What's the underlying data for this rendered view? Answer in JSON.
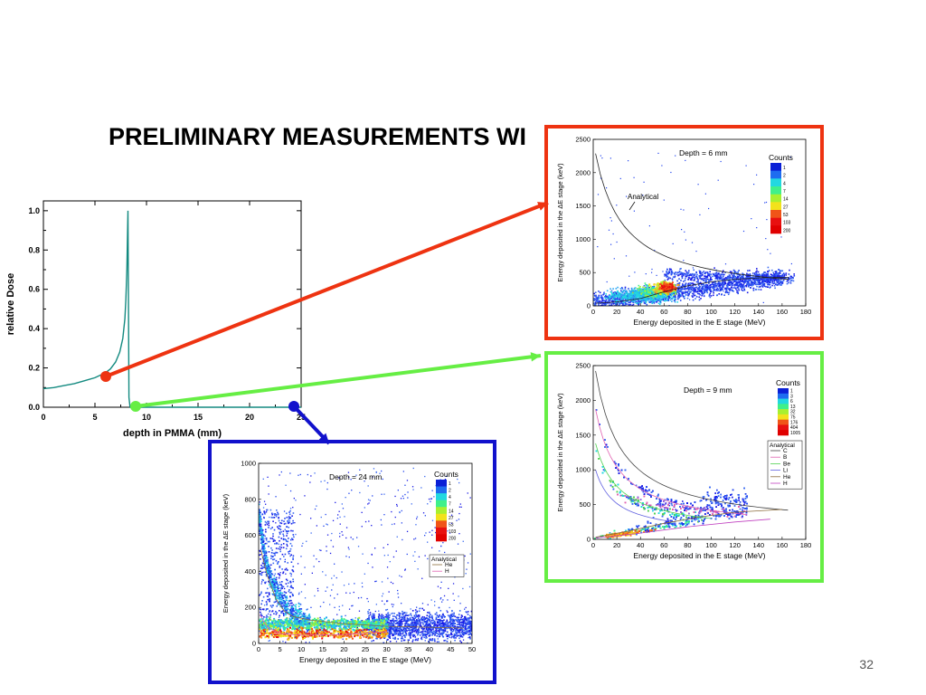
{
  "slide": {
    "title": "PRELIMINARY MEASUREMENTS WI",
    "page_number": "32"
  },
  "colors": {
    "arrow_6mm": "#ee3311",
    "arrow_9mm": "#66ee44",
    "arrow_24mm": "#1111cc",
    "bragg_curve": "#138a80"
  },
  "chart_data": [
    {
      "type": "line",
      "id": "bragg-curve",
      "xlabel": "depth in PMMA (mm)",
      "ylabel": "relative Dose",
      "xlim": [
        0,
        25
      ],
      "ylim": [
        0,
        1.05
      ],
      "xticks": [
        "0",
        "5",
        "10",
        "15",
        "20",
        "25"
      ],
      "yticks": [
        "0.0",
        "0.2",
        "0.4",
        "0.6",
        "0.8",
        "1.0"
      ],
      "series": [
        {
          "x": [
            0,
            1,
            2,
            3,
            4,
            5,
            6,
            6.5,
            7,
            7.4,
            7.7,
            7.9,
            8.0,
            8.1,
            8.15,
            8.2,
            8.25,
            8.3,
            8.4,
            25
          ],
          "y": [
            0.095,
            0.1,
            0.11,
            0.12,
            0.135,
            0.15,
            0.175,
            0.195,
            0.23,
            0.28,
            0.35,
            0.45,
            0.55,
            0.7,
            0.85,
            1.0,
            0.5,
            0.05,
            0.0,
            0.0
          ]
        }
      ],
      "markers": [
        {
          "x": 6,
          "y": 0.17
        },
        {
          "x": 8.5,
          "y": 0.01
        },
        {
          "x": 24,
          "y": 0.01
        }
      ]
    },
    {
      "type": "heatmap",
      "id": "depth-6mm",
      "annotation": "Depth = 6 mm",
      "analytical_label": "Analytical",
      "xlabel": "Energy deposited in the E stage (MeV)",
      "ylabel": "Energy deposited in the ΔE stage (keV)",
      "xlim": [
        0,
        180
      ],
      "ylim": [
        0,
        2500
      ],
      "xticks": [
        "0",
        "20",
        "40",
        "60",
        "80",
        "100",
        "120",
        "140",
        "160",
        "180"
      ],
      "yticks": [
        "0",
        "500",
        "1000",
        "1500",
        "2000",
        "2500"
      ],
      "legend_title": "Counts",
      "legend_levels": [
        "1",
        "2",
        "4",
        "7",
        "14",
        "27",
        "53",
        "103",
        "200"
      ]
    },
    {
      "type": "heatmap",
      "id": "depth-9mm",
      "annotation": "Depth = 9 mm",
      "xlabel": "Energy deposited in the E stage (MeV)",
      "ylabel": "Energy deposited in the ΔE stage (keV)",
      "xlim": [
        0,
        180
      ],
      "ylim": [
        0,
        2500
      ],
      "xticks": [
        "0",
        "20",
        "40",
        "60",
        "80",
        "100",
        "120",
        "140",
        "160",
        "180"
      ],
      "yticks": [
        "0",
        "500",
        "1000",
        "1500",
        "2000",
        "2500"
      ],
      "legend_title": "Counts",
      "legend_levels": [
        "1",
        "3",
        "6",
        "13",
        "32",
        "75",
        "176",
        "404",
        "1005"
      ],
      "analytical_title": "Analytical",
      "analytical_entries": [
        "C",
        "B",
        "Be",
        "Li",
        "He",
        "H"
      ]
    },
    {
      "type": "heatmap",
      "id": "depth-24mm",
      "annotation": "Depth = 24 mm",
      "xlabel": "Energy deposited in the E stage (MeV)",
      "ylabel": "Energy deposited in the ΔE stage (keV)",
      "xlim": [
        0,
        50
      ],
      "ylim": [
        0,
        1000
      ],
      "xticks": [
        "0",
        "5",
        "10",
        "15",
        "20",
        "25",
        "30",
        "35",
        "40",
        "45",
        "50"
      ],
      "yticks": [
        "0",
        "200",
        "400",
        "600",
        "800",
        "1000"
      ],
      "legend_title": "Counts",
      "legend_levels": [
        "1",
        "2",
        "4",
        "7",
        "14",
        "27",
        "53",
        "103",
        "200"
      ],
      "analytical_title": "Analytical",
      "analytical_entries": [
        "He",
        "H"
      ]
    }
  ]
}
